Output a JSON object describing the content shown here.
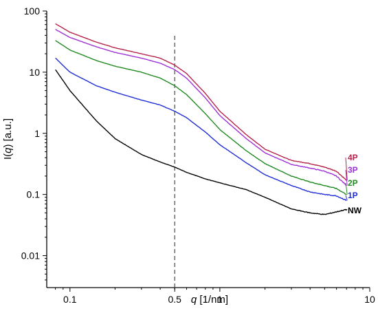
{
  "chart_data": {
    "type": "line",
    "title": "",
    "xlabel": {
      "pre": "",
      "italic": "q",
      "post": " [1/nm]"
    },
    "ylabel": {
      "pre": "I(",
      "italic": "q",
      "post": ") [a.u.]"
    },
    "xscale": "log",
    "yscale": "log",
    "xlim": [
      0.07,
      10
    ],
    "ylim": [
      0.003,
      100
    ],
    "xticks": [
      {
        "value": 0.1,
        "label": "0.1"
      },
      {
        "value": 0.5,
        "label": "0.5"
      },
      {
        "value": 1,
        "label": "1"
      },
      {
        "value": 10,
        "label": "10"
      }
    ],
    "yticks": [
      {
        "value": 0.01,
        "label": "0.01"
      },
      {
        "value": 0.1,
        "label": "0.1"
      },
      {
        "value": 1,
        "label": "1"
      },
      {
        "value": 10,
        "label": "10"
      },
      {
        "value": 100,
        "label": "100"
      }
    ],
    "reference_line": {
      "x": 0.5,
      "style": "dashed",
      "color": "#555555"
    },
    "grid": false,
    "legend": "labels at right end of each curve",
    "series": [
      {
        "name": "4P",
        "color": "#b5224a",
        "x": [
          0.08,
          0.1,
          0.15,
          0.2,
          0.3,
          0.4,
          0.5,
          0.6,
          0.8,
          1.0,
          1.5,
          2,
          3,
          4,
          5,
          6,
          7
        ],
        "y": [
          62,
          45,
          31,
          25,
          20,
          17,
          13,
          9.5,
          4.5,
          2.3,
          0.95,
          0.55,
          0.36,
          0.32,
          0.28,
          0.24,
          0.17
        ]
      },
      {
        "name": "3P",
        "color": "#9b30d6",
        "x": [
          0.08,
          0.1,
          0.15,
          0.2,
          0.3,
          0.4,
          0.5,
          0.6,
          0.8,
          1.0,
          1.5,
          2,
          3,
          4,
          5,
          6,
          7
        ],
        "y": [
          50,
          37,
          26,
          21,
          17,
          14,
          11,
          8,
          3.8,
          1.95,
          0.82,
          0.48,
          0.31,
          0.27,
          0.24,
          0.2,
          0.14
        ]
      },
      {
        "name": "2P",
        "color": "#208a20",
        "x": [
          0.08,
          0.1,
          0.15,
          0.2,
          0.3,
          0.4,
          0.5,
          0.6,
          0.8,
          1.0,
          1.5,
          2,
          3,
          4,
          5,
          6,
          7
        ],
        "y": [
          33,
          23,
          15.5,
          12.5,
          10,
          8,
          6,
          4.3,
          2.1,
          1.15,
          0.52,
          0.32,
          0.2,
          0.16,
          0.14,
          0.125,
          0.1
        ]
      },
      {
        "name": "1P",
        "color": "#1f2dd4",
        "x": [
          0.08,
          0.1,
          0.15,
          0.2,
          0.3,
          0.4,
          0.5,
          0.6,
          0.8,
          1.0,
          1.5,
          2,
          3,
          4,
          5,
          6,
          7
        ],
        "y": [
          17,
          10,
          6,
          4.7,
          3.5,
          2.9,
          2.3,
          1.8,
          1.05,
          0.65,
          0.33,
          0.21,
          0.14,
          0.11,
          0.1,
          0.095,
          0.08
        ]
      },
      {
        "name": "NW",
        "color": "#000000",
        "x": [
          0.08,
          0.1,
          0.15,
          0.2,
          0.3,
          0.4,
          0.5,
          0.6,
          0.8,
          1.0,
          1.5,
          2,
          3,
          4,
          5,
          6,
          7
        ],
        "y": [
          11,
          5,
          1.6,
          0.82,
          0.45,
          0.34,
          0.28,
          0.23,
          0.18,
          0.155,
          0.12,
          0.09,
          0.058,
          0.05,
          0.047,
          0.052,
          0.057
        ]
      }
    ]
  }
}
